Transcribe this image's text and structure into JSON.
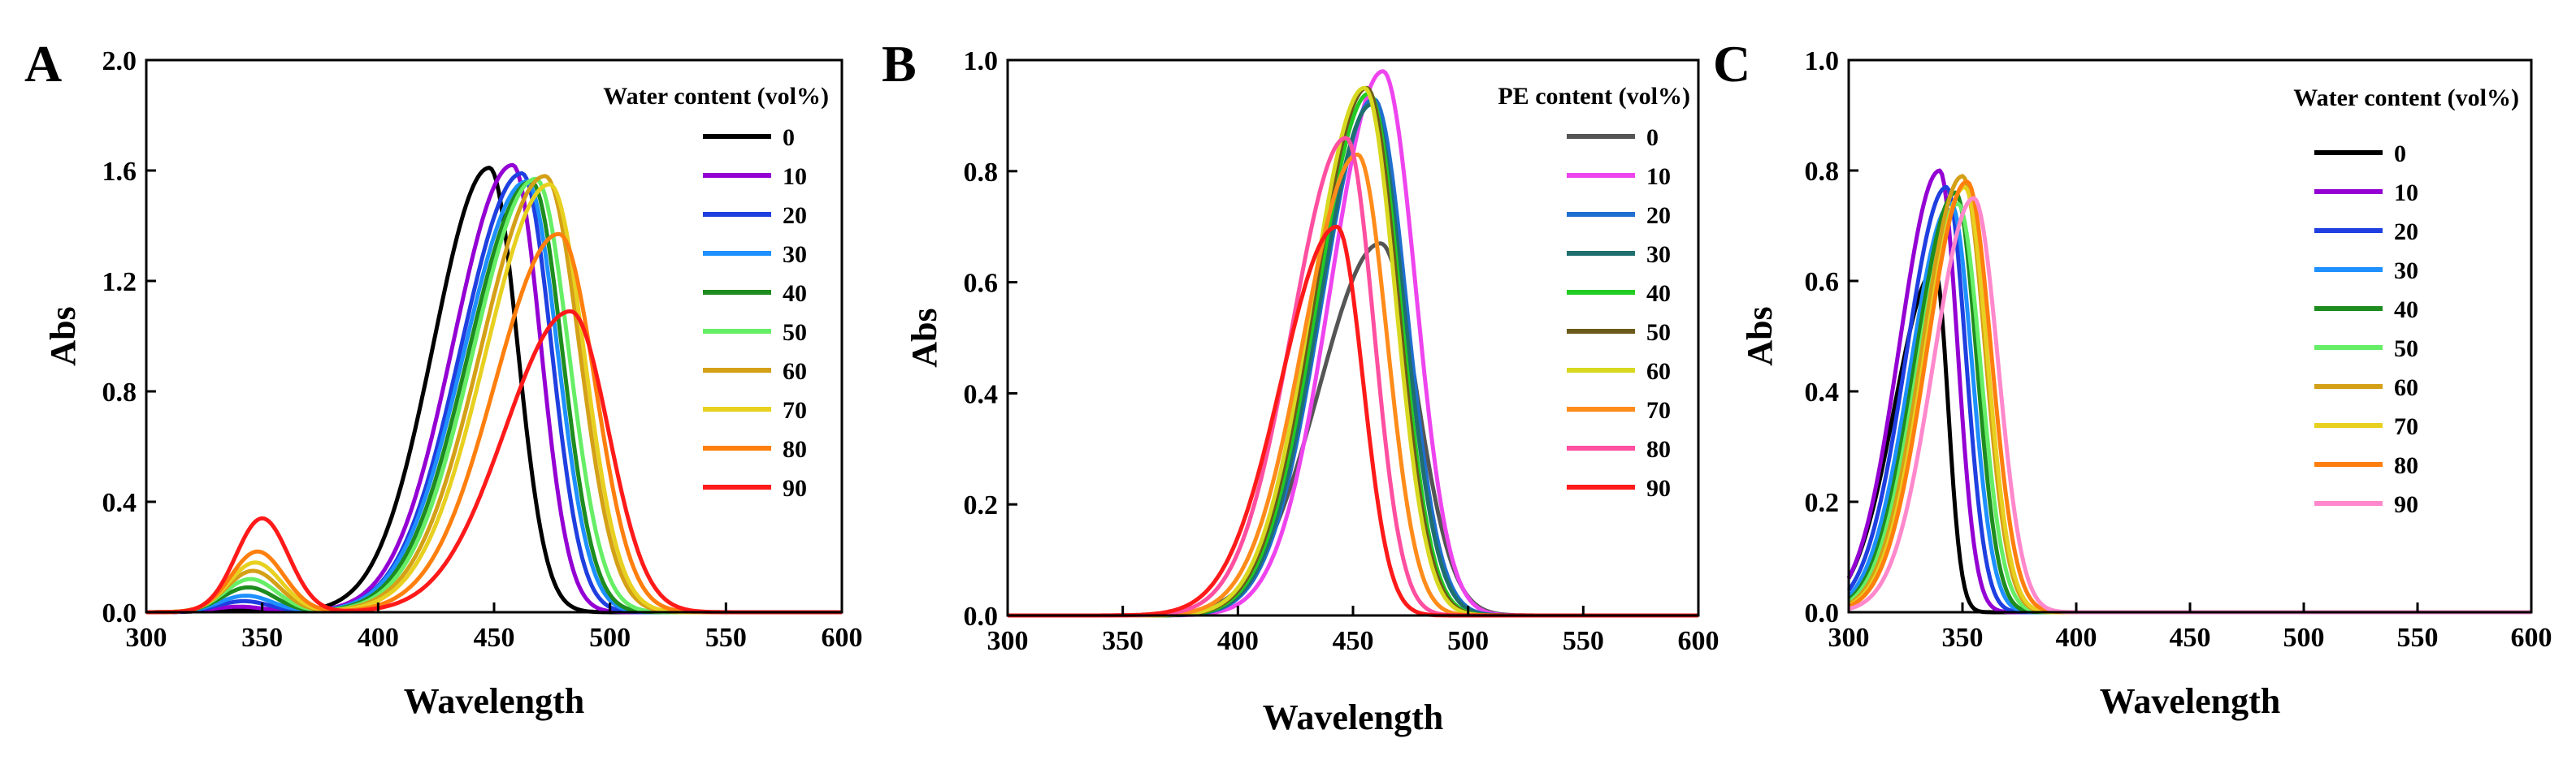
{
  "chart_data": [
    {
      "panel": "A",
      "type": "line",
      "xlabel": "Wavelength",
      "ylabel": "Abs",
      "xlim": [
        300,
        600
      ],
      "ylim": [
        0.0,
        2.0
      ],
      "xticks": [
        "300",
        "350",
        "400",
        "450",
        "500",
        "550",
        "600"
      ],
      "yticks": [
        "0.0",
        "0.4",
        "0.8",
        "1.2",
        "1.6",
        "2.0"
      ],
      "legend_title": "Water content (vol%)",
      "legend_position": "top-right",
      "series": [
        {
          "name": "0",
          "color": "#000000",
          "peak_x": 448,
          "peak_y": 1.61,
          "hw_left": 34,
          "hw_right": 17,
          "uv_peak_x": 338,
          "uv_peak_y": 0.01
        },
        {
          "name": "10",
          "color": "#9400d3",
          "peak_x": 458,
          "peak_y": 1.62,
          "hw_left": 36,
          "hw_right": 17,
          "uv_peak_x": 340,
          "uv_peak_y": 0.02
        },
        {
          "name": "20",
          "color": "#1f3fe0",
          "peak_x": 462,
          "peak_y": 1.59,
          "hw_left": 37,
          "hw_right": 18,
          "uv_peak_x": 342,
          "uv_peak_y": 0.04
        },
        {
          "name": "30",
          "color": "#1e90ff",
          "peak_x": 464,
          "peak_y": 1.56,
          "hw_left": 38,
          "hw_right": 19,
          "uv_peak_x": 343,
          "uv_peak_y": 0.06
        },
        {
          "name": "40",
          "color": "#1e8c1e",
          "peak_x": 466,
          "peak_y": 1.56,
          "hw_left": 38,
          "hw_right": 19,
          "uv_peak_x": 344,
          "uv_peak_y": 0.09
        },
        {
          "name": "50",
          "color": "#66ee66",
          "peak_x": 468,
          "peak_y": 1.57,
          "hw_left": 38,
          "hw_right": 20,
          "uv_peak_x": 345,
          "uv_peak_y": 0.12
        },
        {
          "name": "60",
          "color": "#d4a017",
          "peak_x": 472,
          "peak_y": 1.58,
          "hw_left": 39,
          "hw_right": 21,
          "uv_peak_x": 346,
          "uv_peak_y": 0.15
        },
        {
          "name": "70",
          "color": "#e8d020",
          "peak_x": 474,
          "peak_y": 1.55,
          "hw_left": 39,
          "hw_right": 21,
          "uv_peak_x": 347,
          "uv_peak_y": 0.18
        },
        {
          "name": "80",
          "color": "#ff7f0e",
          "peak_x": 478,
          "peak_y": 1.37,
          "hw_left": 39,
          "hw_right": 22,
          "uv_peak_x": 348,
          "uv_peak_y": 0.22
        },
        {
          "name": "90",
          "color": "#ff1a1a",
          "peak_x": 483,
          "peak_y": 1.09,
          "hw_left": 40,
          "hw_right": 23,
          "uv_peak_x": 350,
          "uv_peak_y": 0.34
        }
      ]
    },
    {
      "panel": "B",
      "type": "line",
      "xlabel": "Wavelength",
      "ylabel": "Abs",
      "xlim": [
        300,
        600
      ],
      "ylim": [
        0.0,
        1.0
      ],
      "xticks": [
        "300",
        "350",
        "400",
        "450",
        "500",
        "550",
        "600"
      ],
      "yticks": [
        "0.0",
        "0.2",
        "0.4",
        "0.6",
        "0.8",
        "1.0"
      ],
      "legend_title": "PE content (vol%)",
      "legend_position": "top-right",
      "series": [
        {
          "name": "0",
          "color": "#555555",
          "peak_x": 462,
          "peak_y": 0.67,
          "hw_left": 38,
          "hw_right": 22
        },
        {
          "name": "10",
          "color": "#ee44ee",
          "peak_x": 463,
          "peak_y": 0.98,
          "hw_left": 32,
          "hw_right": 20
        },
        {
          "name": "20",
          "color": "#1f6fd0",
          "peak_x": 459,
          "peak_y": 0.93,
          "hw_left": 32,
          "hw_right": 20
        },
        {
          "name": "30",
          "color": "#1f6f6f",
          "peak_x": 458,
          "peak_y": 0.92,
          "hw_left": 32,
          "hw_right": 20
        },
        {
          "name": "40",
          "color": "#22cc22",
          "peak_x": 457,
          "peak_y": 0.94,
          "hw_left": 32,
          "hw_right": 19
        },
        {
          "name": "50",
          "color": "#6b5a1a",
          "peak_x": 456,
          "peak_y": 0.95,
          "hw_left": 32,
          "hw_right": 19
        },
        {
          "name": "60",
          "color": "#d8d820",
          "peak_x": 455,
          "peak_y": 0.95,
          "hw_left": 32,
          "hw_right": 19
        },
        {
          "name": "70",
          "color": "#ff8c1a",
          "peak_x": 452,
          "peak_y": 0.83,
          "hw_left": 33,
          "hw_right": 18
        },
        {
          "name": "80",
          "color": "#ff4fa0",
          "peak_x": 447,
          "peak_y": 0.86,
          "hw_left": 33,
          "hw_right": 17
        },
        {
          "name": "90",
          "color": "#ff1a1a",
          "peak_x": 443,
          "peak_y": 0.7,
          "hw_left": 34,
          "hw_right": 16
        }
      ]
    },
    {
      "panel": "C",
      "type": "line",
      "xlabel": "Wavelength",
      "ylabel": "Abs",
      "xlim": [
        300,
        600
      ],
      "ylim": [
        0.0,
        1.0
      ],
      "xticks": [
        "300",
        "350",
        "400",
        "450",
        "500",
        "550",
        "600"
      ],
      "yticks": [
        "0.0",
        "0.2",
        "0.4",
        "0.6",
        "0.8",
        "1.0"
      ],
      "legend_title": "Water content (vol%)",
      "legend_position": "top-right",
      "series": [
        {
          "name": "0",
          "color": "#000000",
          "peak_x": 338,
          "peak_y": 0.62,
          "hw_left": 25,
          "hw_right": 8
        },
        {
          "name": "10",
          "color": "#9400d3",
          "peak_x": 340,
          "peak_y": 0.8,
          "hw_left": 25,
          "hw_right": 11
        },
        {
          "name": "20",
          "color": "#1f3fe0",
          "peak_x": 343,
          "peak_y": 0.77,
          "hw_left": 25,
          "hw_right": 12
        },
        {
          "name": "30",
          "color": "#1e90ff",
          "peak_x": 345,
          "peak_y": 0.74,
          "hw_left": 25,
          "hw_right": 13
        },
        {
          "name": "40",
          "color": "#1e8c1e",
          "peak_x": 347,
          "peak_y": 0.76,
          "hw_left": 25,
          "hw_right": 13
        },
        {
          "name": "50",
          "color": "#66ee66",
          "peak_x": 348,
          "peak_y": 0.74,
          "hw_left": 25,
          "hw_right": 14
        },
        {
          "name": "60",
          "color": "#d4a017",
          "peak_x": 350,
          "peak_y": 0.79,
          "hw_left": 25,
          "hw_right": 14
        },
        {
          "name": "70",
          "color": "#e8d020",
          "peak_x": 351,
          "peak_y": 0.77,
          "hw_left": 25,
          "hw_right": 14
        },
        {
          "name": "80",
          "color": "#ff7f0e",
          "peak_x": 352,
          "peak_y": 0.78,
          "hw_left": 25,
          "hw_right": 15
        },
        {
          "name": "90",
          "color": "#ff88cc",
          "peak_x": 355,
          "peak_y": 0.75,
          "hw_left": 25,
          "hw_right": 15
        }
      ]
    }
  ]
}
